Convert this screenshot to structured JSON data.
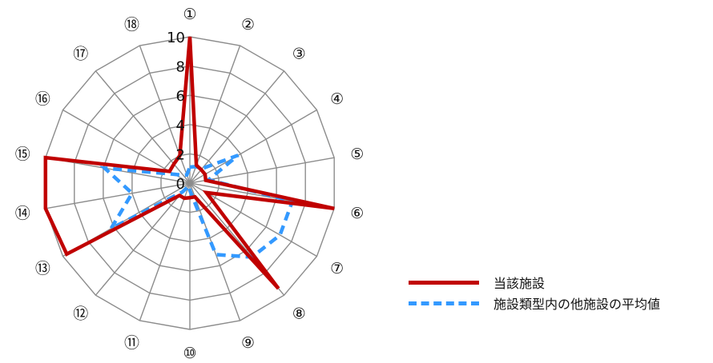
{
  "chart_data": {
    "type": "radar",
    "categories": [
      "①",
      "②",
      "③",
      "④",
      "⑤",
      "⑥",
      "⑦",
      "⑧",
      "⑨",
      "⑩",
      "⑪",
      "⑫",
      "⑬",
      "⑭",
      "⑮",
      "⑯",
      "⑰",
      "⑱"
    ],
    "tick_labels": [
      "0",
      "2",
      "4",
      "6",
      "8",
      "10"
    ],
    "rlim": [
      0,
      10
    ],
    "grid": true,
    "legend_position": "right",
    "series": [
      {
        "name": "当該施設",
        "color": "#C00000",
        "style": "solid",
        "values": [
          10,
          1.3,
          1.2,
          1.2,
          1.1,
          10,
          1.3,
          9.4,
          1,
          1,
          1.1,
          1.1,
          9.7,
          10,
          10,
          1.6,
          1.7,
          2
        ]
      },
      {
        "name": "施設類型内の他施設の平均値",
        "color": "#3399FF",
        "style": "dashed",
        "values": [
          1.1,
          1.2,
          1.3,
          3.8,
          1.3,
          7.1,
          7.1,
          6.6,
          5.2,
          0.5,
          0.2,
          0.8,
          6.2,
          4,
          5.9,
          1.2,
          0.7,
          0.6
        ]
      }
    ]
  }
}
